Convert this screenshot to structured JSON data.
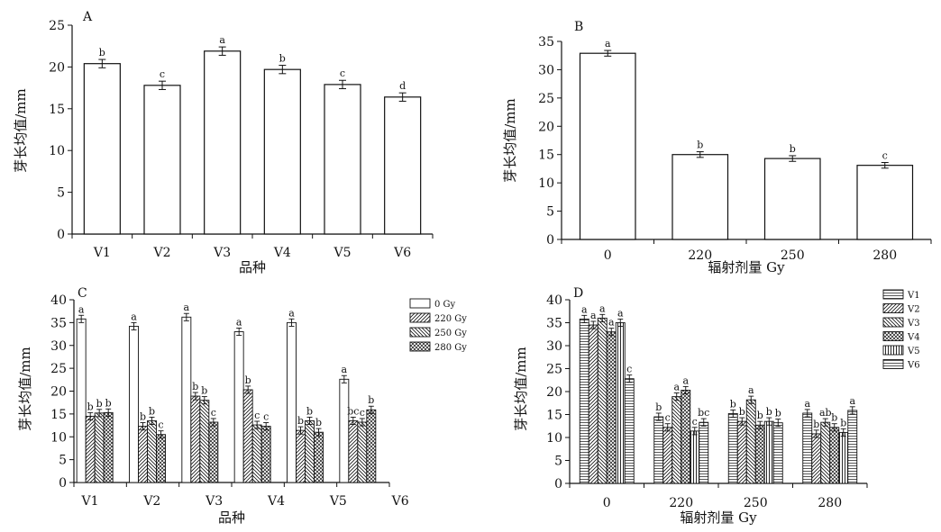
{
  "chart_data": [
    {
      "panel": "A",
      "type": "bar",
      "xlabel": "品种",
      "ylabel": "芽长均值/mm",
      "categories": [
        "V1",
        "V2",
        "V3",
        "V4",
        "V5",
        "V6"
      ],
      "values": [
        20.4,
        17.8,
        21.9,
        19.7,
        17.9,
        16.4
      ],
      "errors": [
        0.5,
        0.5,
        0.5,
        0.5,
        0.5,
        0.5
      ],
      "labels": [
        "b",
        "c",
        "a",
        "b",
        "c",
        "d"
      ],
      "ylim": [
        0,
        25
      ],
      "yticks": [
        0,
        5,
        10,
        15,
        20,
        25
      ]
    },
    {
      "panel": "B",
      "type": "bar",
      "xlabel": "辐射剂量 Gy",
      "ylabel": "芽长均值/mm",
      "categories": [
        "0",
        "220",
        "250",
        "280"
      ],
      "values": [
        32.9,
        15.0,
        14.3,
        13.1
      ],
      "errors": [
        0.5,
        0.5,
        0.5,
        0.5
      ],
      "labels": [
        "a",
        "b",
        "b",
        "c"
      ],
      "ylim": [
        0,
        35
      ],
      "yticks": [
        0,
        5,
        10,
        15,
        20,
        25,
        30,
        35
      ]
    },
    {
      "panel": "C",
      "type": "bar",
      "xlabel": "品种",
      "ylabel": "芽长均值/mm",
      "categories": [
        "V1",
        "V2",
        "V3",
        "V4",
        "V5",
        "V6"
      ],
      "ylim": [
        0,
        40
      ],
      "yticks": [
        0,
        5,
        10,
        15,
        20,
        25,
        30,
        35,
        40
      ],
      "legend_position": "top-right",
      "series": [
        {
          "name": "0 Gy",
          "values": [
            35.8,
            34.2,
            36.2,
            33.0,
            35.0,
            22.6
          ],
          "labels": [
            "a",
            "a",
            "a",
            "a",
            "a",
            "a"
          ]
        },
        {
          "name": "220 Gy",
          "values": [
            14.5,
            12.3,
            18.9,
            20.3,
            11.4,
            13.5
          ],
          "labels": [
            "b",
            "b",
            "b",
            "b",
            "b",
            "bc"
          ]
        },
        {
          "name": "250 Gy",
          "values": [
            15.2,
            13.5,
            18.0,
            12.6,
            13.5,
            13.2
          ],
          "labels": [
            "b",
            "b",
            "b",
            "c",
            "b",
            "c"
          ]
        },
        {
          "name": "280 Gy",
          "values": [
            15.3,
            10.5,
            13.2,
            12.3,
            11.0,
            15.9
          ],
          "labels": [
            "b",
            "c",
            "c",
            "c",
            "b",
            "b"
          ]
        }
      ],
      "error": 0.8
    },
    {
      "panel": "D",
      "type": "bar",
      "xlabel": "辐射剂量 Gy",
      "ylabel": "芽长均值/mm",
      "categories": [
        "0",
        "220",
        "250",
        "280"
      ],
      "ylim": [
        0,
        40
      ],
      "yticks": [
        0,
        5,
        10,
        15,
        20,
        25,
        30,
        35,
        40
      ],
      "legend_position": "top-right",
      "series": [
        {
          "name": "V1",
          "values": [
            35.8,
            14.5,
            15.2,
            15.3
          ],
          "labels": [
            "a",
            "b",
            "b",
            "a"
          ]
        },
        {
          "name": "V2",
          "values": [
            34.5,
            12.2,
            13.5,
            10.8
          ],
          "labels": [
            "a",
            "c",
            "b",
            "b"
          ]
        },
        {
          "name": "V3",
          "values": [
            36.0,
            18.9,
            18.2,
            13.3
          ],
          "labels": [
            "a",
            "a",
            "a",
            "ab"
          ]
        },
        {
          "name": "V4",
          "values": [
            33.0,
            20.3,
            12.7,
            12.2
          ],
          "labels": [
            "a",
            "a",
            "b",
            "b"
          ]
        },
        {
          "name": "V5",
          "values": [
            35.0,
            11.4,
            13.5,
            11.1
          ],
          "labels": [
            "a",
            "c",
            "b",
            "b"
          ]
        },
        {
          "name": "V6",
          "values": [
            22.8,
            13.3,
            13.2,
            15.9
          ],
          "labels": [
            "c",
            "bc",
            "b",
            "a"
          ]
        }
      ],
      "error": 0.8
    }
  ]
}
